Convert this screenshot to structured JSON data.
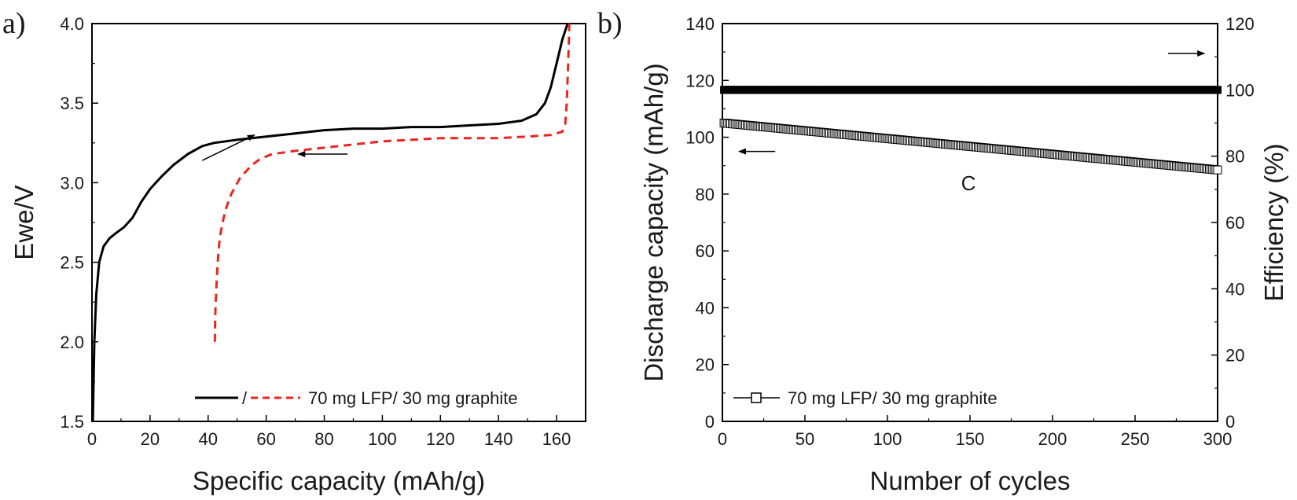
{
  "chart_data": [
    {
      "panel_label": "a)",
      "type": "line",
      "xlabel": "Specific capacity (mAh/g)",
      "ylabel": "Ewe/V",
      "xlim": [
        0,
        170
      ],
      "ylim": [
        1.5,
        4.0
      ],
      "xticks": [
        0,
        20,
        40,
        60,
        80,
        100,
        120,
        140,
        160
      ],
      "yticks": [
        1.5,
        2.0,
        2.5,
        3.0,
        3.5,
        4.0
      ],
      "xtick_labels": [
        "0",
        "20",
        "40",
        "60",
        "80",
        "100",
        "120",
        "140",
        "160"
      ],
      "ytick_labels": [
        "1.5",
        "2.0",
        "2.5",
        "3.0",
        "3.5",
        "4.0"
      ],
      "legend": {
        "position": "bottom-right",
        "separator": "/",
        "text": "70 mg LFP/ 30 mg graphite"
      },
      "series": [
        {
          "style": "solid",
          "color": "#000000",
          "x": [
            0.3,
            0.8,
            1.5,
            2.5,
            4,
            6,
            8,
            11,
            14,
            17,
            20,
            24,
            28,
            33,
            38,
            42,
            46,
            50,
            60,
            70,
            80,
            90,
            100,
            110,
            120,
            130,
            140,
            148,
            153,
            156,
            158,
            160,
            162,
            163.8
          ],
          "y": [
            1.5,
            2.0,
            2.3,
            2.5,
            2.6,
            2.65,
            2.68,
            2.72,
            2.78,
            2.88,
            2.96,
            3.04,
            3.11,
            3.18,
            3.23,
            3.25,
            3.26,
            3.27,
            3.29,
            3.31,
            3.33,
            3.34,
            3.34,
            3.35,
            3.35,
            3.36,
            3.37,
            3.39,
            3.43,
            3.5,
            3.6,
            3.75,
            3.9,
            4.0
          ]
        },
        {
          "style": "dashed",
          "color": "#e8251e",
          "x": [
            42.3,
            42.5,
            43,
            43.5,
            44,
            45,
            46,
            48,
            51,
            55,
            58,
            62,
            70,
            80,
            90,
            100,
            110,
            120,
            130,
            140,
            150,
            158,
            162,
            163,
            163.5,
            164,
            164.4
          ],
          "y": [
            2.0,
            2.2,
            2.4,
            2.55,
            2.65,
            2.75,
            2.83,
            2.93,
            3.03,
            3.11,
            3.15,
            3.18,
            3.2,
            3.22,
            3.24,
            3.26,
            3.27,
            3.28,
            3.28,
            3.28,
            3.29,
            3.3,
            3.32,
            3.37,
            3.5,
            3.75,
            4.0
          ]
        }
      ],
      "annotations": [
        {
          "type": "arrow",
          "direction": "up-right",
          "from": [
            38,
            3.14
          ],
          "to": [
            56,
            3.3
          ]
        },
        {
          "type": "arrow",
          "direction": "left",
          "from": [
            88,
            3.18
          ],
          "to": [
            71,
            3.18
          ]
        }
      ]
    },
    {
      "panel_label": "b)",
      "type": "line",
      "xlabel": "Number of cycles",
      "ylabel": "Discharge capacity (mAh/g)",
      "y2label": "Efficiency (%)",
      "xlim": [
        0,
        300
      ],
      "ylim": [
        0,
        140
      ],
      "y2lim": [
        0,
        120
      ],
      "xticks": [
        0,
        50,
        100,
        150,
        200,
        250,
        300
      ],
      "yticks": [
        0,
        20,
        40,
        60,
        80,
        100,
        120,
        140
      ],
      "y2ticks": [
        0,
        20,
        40,
        60,
        80,
        100,
        120
      ],
      "xtick_labels": [
        "0",
        "50",
        "100",
        "150",
        "200",
        "250",
        "300"
      ],
      "ytick_labels": [
        "0",
        "20",
        "40",
        "60",
        "80",
        "100",
        "120",
        "140"
      ],
      "y2tick_labels": [
        "0",
        "20",
        "40",
        "60",
        "80",
        "100",
        "120"
      ],
      "legend": {
        "position": "bottom-left",
        "marker": "open-square",
        "text": "70 mg LFP/ 30 mg graphite"
      },
      "text_annotation": "C",
      "series": [
        {
          "axis": "left",
          "marker": "open-square",
          "color": "#000000",
          "x": [
            1,
            300
          ],
          "y": [
            105,
            88.5
          ]
        },
        {
          "axis": "right",
          "marker": "filled-square",
          "color": "#000000",
          "x": [
            1,
            300
          ],
          "y": [
            100,
            100
          ]
        }
      ],
      "annotations": [
        {
          "type": "arrow",
          "direction": "left",
          "from": [
            32,
            95
          ],
          "to": [
            10,
            95
          ]
        },
        {
          "type": "arrow",
          "direction": "right",
          "from": [
            270,
            111
          ],
          "to": [
            292,
            111
          ]
        }
      ]
    }
  ]
}
